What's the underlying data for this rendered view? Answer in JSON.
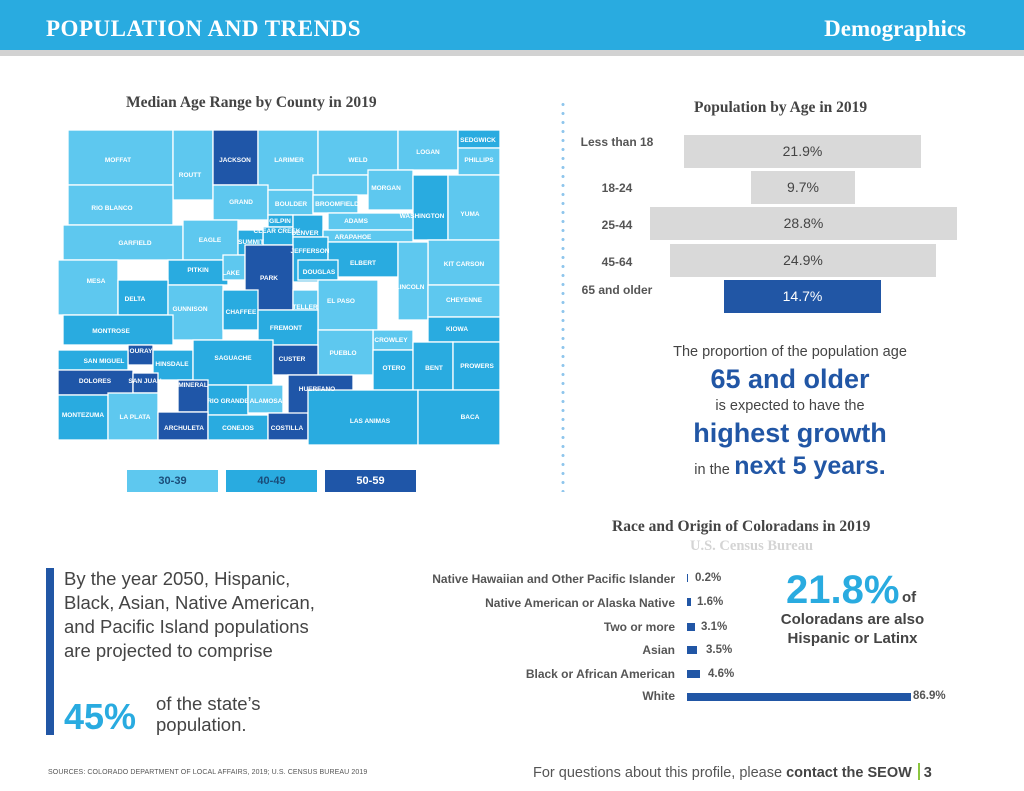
{
  "header": {
    "title": "POPULATION AND TRENDS",
    "section": "Demographics"
  },
  "map": {
    "title": "Median Age Range by County in 2019",
    "colors": {
      "c30": "#5ec8ef",
      "c40": "#29abe0",
      "c50": "#1f56a8"
    },
    "counties": {
      "moffat": "MOFFAT",
      "routt": "ROUTT",
      "jackson": "JACKSON",
      "larimer": "LARIMER",
      "weld": "WELD",
      "logan": "LOGAN",
      "sedgwick": "SEDGWICK",
      "phillips": "PHILLIPS",
      "morgan": "MORGAN",
      "rio_blanco": "RIO BLANCO",
      "grand": "GRAND",
      "boulder": "BOULDER",
      "broomfield": "BROOMFIELD",
      "washington": "WASHINGTON",
      "yuma": "YUMA",
      "gilpin": "GILPIN",
      "adams": "ADAMS",
      "clear_creek": "CLEAR CREEK",
      "denver": "DENVER",
      "arapahoe": "ARAPAHOE",
      "garfield": "GARFIELD",
      "eagle": "EAGLE",
      "summit": "SUMMIT",
      "jefferson": "JEFFERSON",
      "elbert": "ELBERT",
      "kit_carson": "KIT CARSON",
      "douglas": "DOUGLAS",
      "pitkin": "PITKIN",
      "lake": "LAKE",
      "park": "PARK",
      "mesa": "MESA",
      "lincoln": "LINCOLN",
      "delta": "DELTA",
      "teller": "TELLER",
      "el_paso": "EL PASO",
      "cheyenne": "CHEYENNE",
      "gunnison": "GUNNISON",
      "chaffee": "CHAFFEE",
      "fremont": "FREMONT",
      "montrose": "MONTROSE",
      "kiowa": "KIOWA",
      "crowley": "CROWLEY",
      "ouray": "OURAY",
      "pueblo": "PUEBLO",
      "san_miguel": "SAN MIGUEL",
      "hinsdale": "HINSDALE",
      "saguache": "SAGUACHE",
      "custer": "CUSTER",
      "otero": "OTERO",
      "bent": "BENT",
      "prowers": "PROWERS",
      "dolores": "DOLORES",
      "san_juan": "SAN JUAN",
      "mineral": "MINERAL",
      "huerfano": "HUERFANO",
      "rio_grande": "RIO GRANDE",
      "alamosa": "ALAMOSA",
      "montezuma": "MONTEZUMA",
      "la_plata": "LA PLATA",
      "las_animas": "LAS ANIMAS",
      "baca": "BACA",
      "archuleta": "ARCHULETA",
      "conejos": "CONEJOS",
      "costilla": "COSTILLA"
    },
    "legend": [
      "30-39",
      "40-49",
      "50-59"
    ]
  },
  "age_chart": {
    "title": "Population by Age in 2019",
    "rows": [
      {
        "label": "Less than 18",
        "value": "21.9%"
      },
      {
        "label": "18-24",
        "value": "9.7%"
      },
      {
        "label": "25-44",
        "value": "28.8%"
      },
      {
        "label": "45-64",
        "value": "24.9%"
      },
      {
        "label": "65 and older",
        "value": "14.7%"
      }
    ]
  },
  "projection": {
    "line1": "The proportion of the population age",
    "line2": "65 and older",
    "line3": "is expected to have the",
    "line4": "highest growth",
    "line5a": "in the",
    "line5b": "next 5 years."
  },
  "race_chart": {
    "title": "Race and Origin of Coloradans in 2019",
    "subtitle": "U.S. Census Bureau",
    "rows": [
      {
        "label": "Native Hawaiian and Other Pacific Islander",
        "value": "0.2%"
      },
      {
        "label": "Native American or Alaska Native",
        "value": "1.6%"
      },
      {
        "label": "Two or more",
        "value": "3.1%"
      },
      {
        "label": "Asian",
        "value": "3.5%"
      },
      {
        "label": "Black or African American",
        "value": "4.6%"
      },
      {
        "label": "White",
        "value": "86.9%"
      }
    ]
  },
  "hispanic": {
    "value": "21.8%",
    "of": "of",
    "text": "Coloradans are also Hispanic or Latinx"
  },
  "quote": {
    "text": "By the year 2050, Hispanic, Black, Asian, Native American, and Pacific Island populations are projected to comprise",
    "value": "45%",
    "tail": "of the state’s population."
  },
  "chart_data": [
    {
      "type": "bar",
      "title": "Population by Age in 2019",
      "categories": [
        "Less than 18",
        "18-24",
        "25-44",
        "45-64",
        "65 and older"
      ],
      "values": [
        21.9,
        9.7,
        28.8,
        24.9,
        14.7
      ],
      "unit": "%"
    },
    {
      "type": "bar",
      "title": "Race and Origin of Coloradans in 2019",
      "subtitle": "U.S. Census Bureau",
      "categories": [
        "Native Hawaiian and Other Pacific Islander",
        "Native American or Alaska Native",
        "Two or more",
        "Asian",
        "Black or African American",
        "White"
      ],
      "values": [
        0.2,
        1.6,
        3.1,
        3.5,
        4.6,
        86.9
      ],
      "unit": "%"
    }
  ],
  "footer": {
    "sources": "SOURCES: COLORADO DEPARTMENT OF LOCAL AFFAIRS, 2019; U.S. CENSUS BUREAU 2019",
    "text": "For questions about this profile, please",
    "link": "contact the SEOW",
    "page": "3"
  }
}
